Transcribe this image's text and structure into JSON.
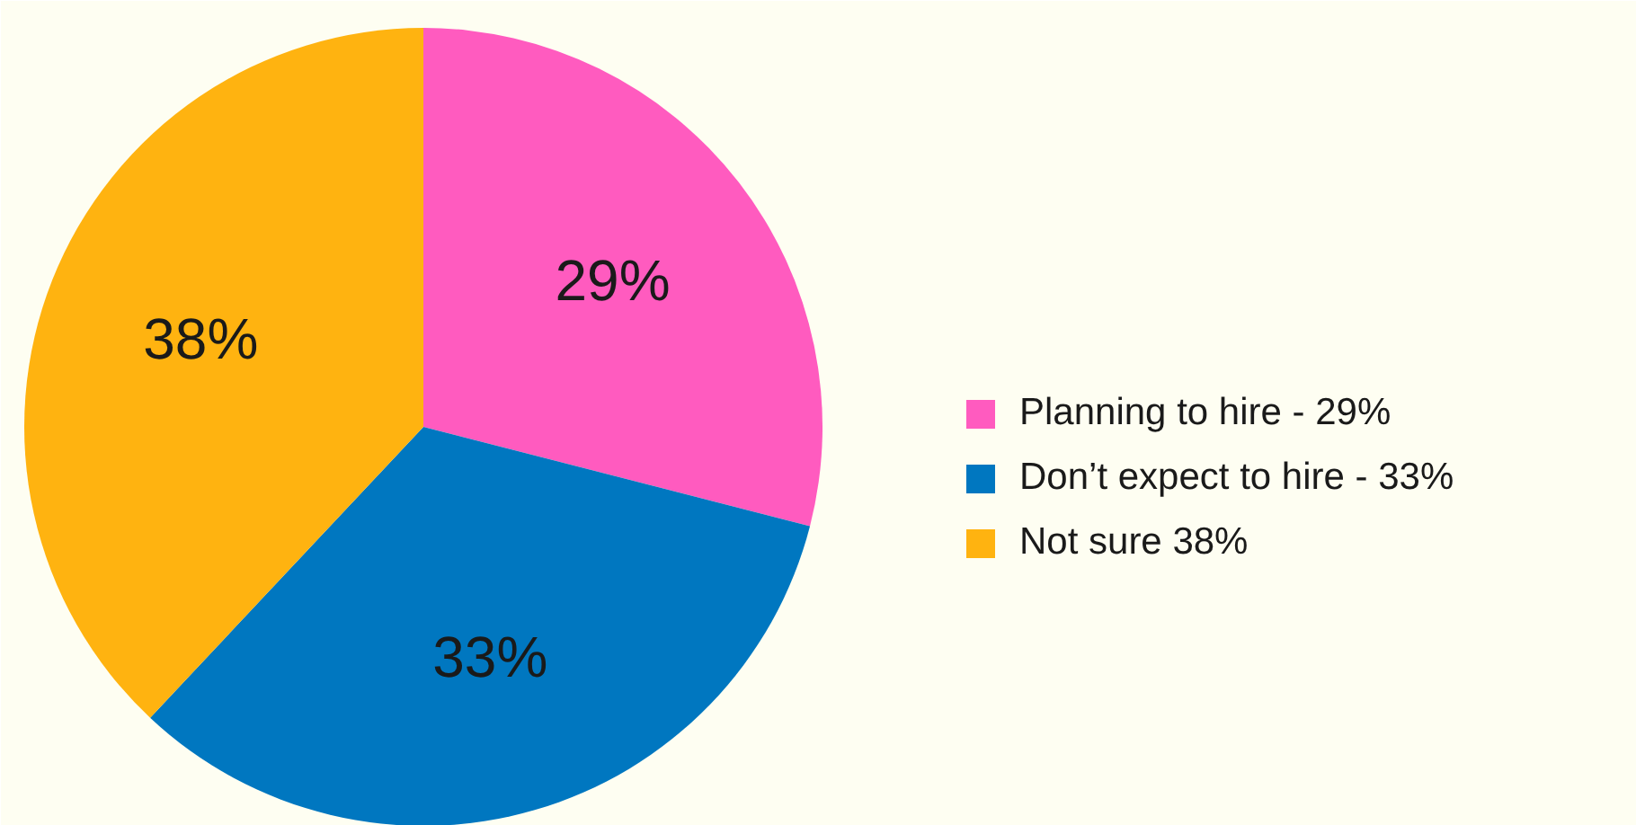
{
  "chart_data": {
    "type": "pie",
    "categories": [
      "Planning to hire - 29%",
      "Don’t expect to hire - 33%",
      "Not sure 38%"
    ],
    "values": [
      29,
      33,
      38
    ],
    "colors": [
      "#ff5bbf",
      "#0077c0",
      "#ffb310"
    ],
    "value_labels": [
      "29%",
      "33%",
      "38%"
    ],
    "legend": "right"
  }
}
